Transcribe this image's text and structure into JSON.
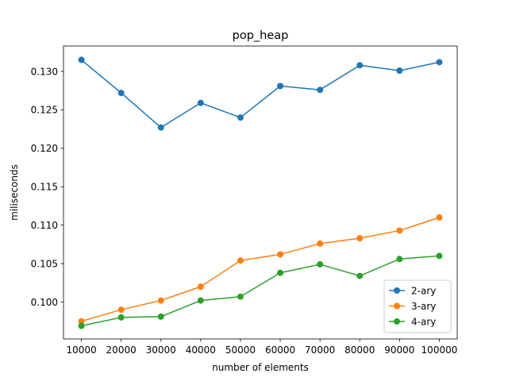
{
  "chart_data": {
    "type": "line",
    "title": "pop_heap",
    "xlabel": "number of elements",
    "ylabel": "miliseconds",
    "x": [
      10000,
      20000,
      30000,
      40000,
      50000,
      60000,
      70000,
      80000,
      90000,
      100000
    ],
    "x_ticks": [
      "10000",
      "20000",
      "30000",
      "40000",
      "50000",
      "60000",
      "70000",
      "80000",
      "90000",
      "100000"
    ],
    "y_ticks": [
      0.1,
      0.105,
      0.11,
      0.115,
      0.12,
      0.125,
      0.13
    ],
    "y_tick_labels": [
      "0.100",
      "0.105",
      "0.110",
      "0.115",
      "0.120",
      "0.125",
      "0.130"
    ],
    "xlim": [
      5500,
      104500
    ],
    "ylim": [
      0.0952,
      0.1333
    ],
    "grid": false,
    "legend_position": "lower right",
    "series": [
      {
        "name": "2-ary",
        "color": "#1f77b4",
        "marker": "circle",
        "values": [
          0.1315,
          0.1272,
          0.1227,
          0.1259,
          0.124,
          0.1281,
          0.1276,
          0.1308,
          0.1301,
          0.1312
        ]
      },
      {
        "name": "3-ary",
        "color": "#ff7f0e",
        "marker": "circle",
        "values": [
          0.0975,
          0.099,
          0.1002,
          0.102,
          0.1054,
          0.1062,
          0.1076,
          0.1083,
          0.1093,
          0.111
        ]
      },
      {
        "name": "4-ary",
        "color": "#2ca02c",
        "marker": "circle",
        "values": [
          0.0969,
          0.098,
          0.0981,
          0.1002,
          0.1007,
          0.1038,
          0.1049,
          0.1034,
          0.1056,
          0.106
        ]
      }
    ]
  }
}
